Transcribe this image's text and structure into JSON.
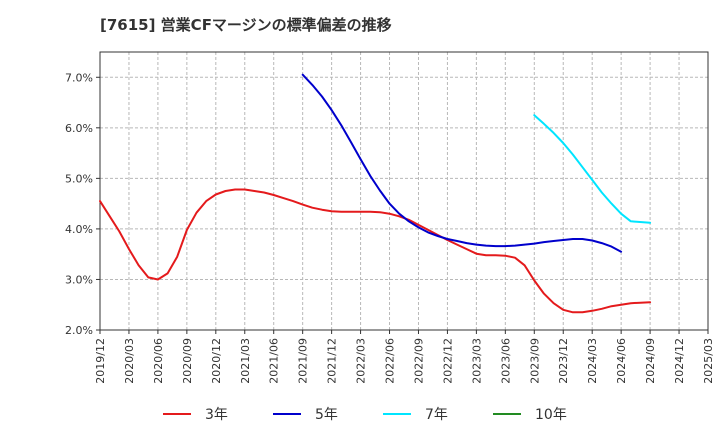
{
  "title": "[7615]  営業CFマージンの標準偏差の推移",
  "chart_data": {
    "type": "line",
    "title": "[7615]  営業CFマージンの標準偏差の推移",
    "xlabel": "",
    "ylabel": "",
    "x_ticks": [
      "2019/12",
      "2020/03",
      "2020/06",
      "2020/09",
      "2020/12",
      "2021/03",
      "2021/06",
      "2021/09",
      "2021/12",
      "2022/03",
      "2022/06",
      "2022/09",
      "2022/12",
      "2023/03",
      "2023/06",
      "2023/09",
      "2023/12",
      "2024/03",
      "2024/06",
      "2024/09",
      "2024/12",
      "2025/03"
    ],
    "y_ticks": [
      "2.0%",
      "3.0%",
      "4.0%",
      "5.0%",
      "6.0%",
      "7.0%"
    ],
    "ylim": [
      2.0,
      7.5
    ],
    "grid": true,
    "legend_position": "bottom",
    "series": [
      {
        "name": "3年",
        "color": "#e41a1c",
        "points": [
          [
            "2019/12",
            4.55
          ],
          [
            "2020/01",
            4.25
          ],
          [
            "2020/02",
            3.95
          ],
          [
            "2020/03",
            3.6
          ],
          [
            "2020/04",
            3.28
          ],
          [
            "2020/05",
            3.04
          ],
          [
            "2020/06",
            3.0
          ],
          [
            "2020/07",
            3.12
          ],
          [
            "2020/08",
            3.45
          ],
          [
            "2020/09",
            3.98
          ],
          [
            "2020/10",
            4.32
          ],
          [
            "2020/11",
            4.55
          ],
          [
            "2020/12",
            4.68
          ],
          [
            "2021/01",
            4.75
          ],
          [
            "2021/02",
            4.78
          ],
          [
            "2021/03",
            4.78
          ],
          [
            "2021/04",
            4.75
          ],
          [
            "2021/05",
            4.72
          ],
          [
            "2021/06",
            4.67
          ],
          [
            "2021/07",
            4.61
          ],
          [
            "2021/08",
            4.55
          ],
          [
            "2021/09",
            4.48
          ],
          [
            "2021/10",
            4.42
          ],
          [
            "2021/11",
            4.38
          ],
          [
            "2021/12",
            4.35
          ],
          [
            "2022/01",
            4.34
          ],
          [
            "2022/02",
            4.34
          ],
          [
            "2022/03",
            4.34
          ],
          [
            "2022/04",
            4.34
          ],
          [
            "2022/05",
            4.33
          ],
          [
            "2022/06",
            4.3
          ],
          [
            "2022/07",
            4.25
          ],
          [
            "2022/08",
            4.18
          ],
          [
            "2022/09",
            4.08
          ],
          [
            "2022/10",
            3.98
          ],
          [
            "2022/11",
            3.88
          ],
          [
            "2022/12",
            3.78
          ],
          [
            "2023/01",
            3.69
          ],
          [
            "2023/02",
            3.6
          ],
          [
            "2023/03",
            3.51
          ],
          [
            "2023/04",
            3.48
          ],
          [
            "2023/05",
            3.48
          ],
          [
            "2023/06",
            3.47
          ],
          [
            "2023/07",
            3.43
          ],
          [
            "2023/08",
            3.28
          ],
          [
            "2023/09",
            2.98
          ],
          [
            "2023/10",
            2.72
          ],
          [
            "2023/11",
            2.53
          ],
          [
            "2023/12",
            2.4
          ],
          [
            "2024/01",
            2.35
          ],
          [
            "2024/02",
            2.35
          ],
          [
            "2024/03",
            2.38
          ],
          [
            "2024/04",
            2.42
          ],
          [
            "2024/05",
            2.47
          ],
          [
            "2024/06",
            2.5
          ],
          [
            "2024/07",
            2.53
          ],
          [
            "2024/08",
            2.54
          ],
          [
            "2024/09",
            2.55
          ]
        ]
      },
      {
        "name": "5年",
        "color": "#0000cc",
        "points": [
          [
            "2021/09",
            7.05
          ],
          [
            "2021/10",
            6.85
          ],
          [
            "2021/11",
            6.62
          ],
          [
            "2021/12",
            6.35
          ],
          [
            "2022/01",
            6.05
          ],
          [
            "2022/02",
            5.72
          ],
          [
            "2022/03",
            5.38
          ],
          [
            "2022/04",
            5.05
          ],
          [
            "2022/05",
            4.76
          ],
          [
            "2022/06",
            4.5
          ],
          [
            "2022/07",
            4.3
          ],
          [
            "2022/08",
            4.15
          ],
          [
            "2022/09",
            4.03
          ],
          [
            "2022/10",
            3.93
          ],
          [
            "2022/11",
            3.86
          ],
          [
            "2022/12",
            3.8
          ],
          [
            "2023/01",
            3.76
          ],
          [
            "2023/02",
            3.72
          ],
          [
            "2023/03",
            3.69
          ],
          [
            "2023/04",
            3.67
          ],
          [
            "2023/05",
            3.66
          ],
          [
            "2023/06",
            3.66
          ],
          [
            "2023/07",
            3.67
          ],
          [
            "2023/08",
            3.69
          ],
          [
            "2023/09",
            3.71
          ],
          [
            "2023/10",
            3.74
          ],
          [
            "2023/11",
            3.76
          ],
          [
            "2023/12",
            3.78
          ],
          [
            "2024/01",
            3.8
          ],
          [
            "2024/02",
            3.8
          ],
          [
            "2024/03",
            3.77
          ],
          [
            "2024/04",
            3.72
          ],
          [
            "2024/05",
            3.65
          ],
          [
            "2024/06",
            3.55
          ]
        ]
      },
      {
        "name": "7年",
        "color": "#00e5ff",
        "points": [
          [
            "2023/09",
            6.25
          ],
          [
            "2023/10",
            6.08
          ],
          [
            "2023/11",
            5.9
          ],
          [
            "2023/12",
            5.7
          ],
          [
            "2024/01",
            5.47
          ],
          [
            "2024/02",
            5.22
          ],
          [
            "2024/03",
            4.97
          ],
          [
            "2024/04",
            4.72
          ],
          [
            "2024/05",
            4.5
          ],
          [
            "2024/06",
            4.3
          ],
          [
            "2024/07",
            4.15
          ],
          [
            "2024/09",
            4.12
          ]
        ]
      },
      {
        "name": "10年",
        "color": "#228b22",
        "points": []
      }
    ]
  }
}
